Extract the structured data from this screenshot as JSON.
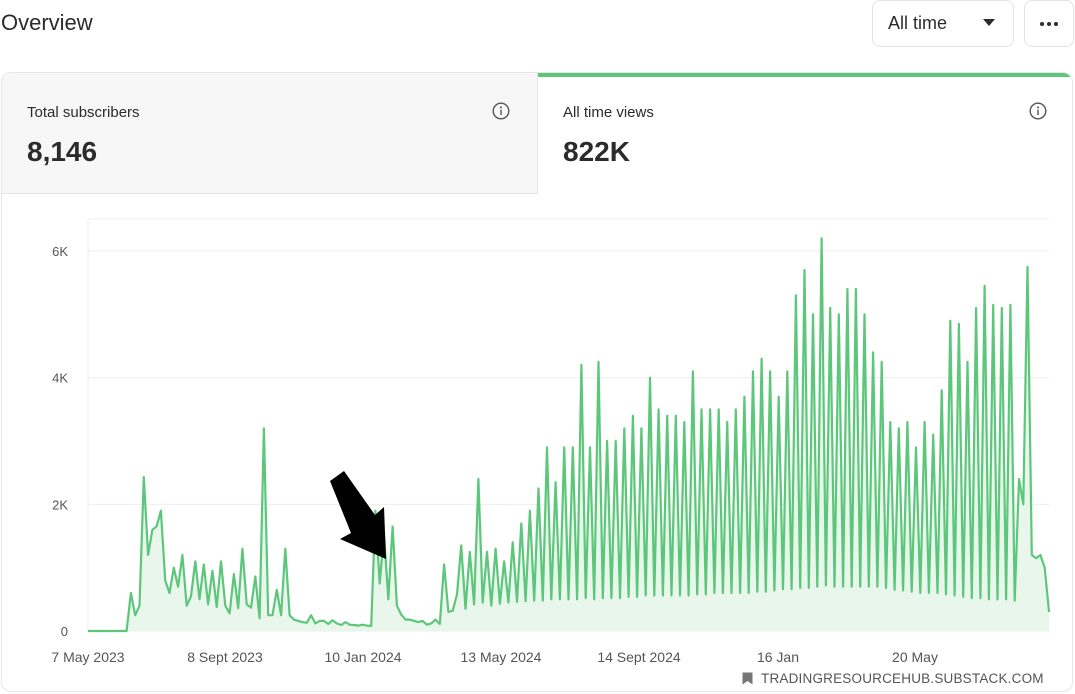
{
  "header": {
    "title": "Overview",
    "range_select": {
      "value": "All time"
    },
    "more_icon": "ellipsis-icon"
  },
  "stats": {
    "subscribers": {
      "label": "Total subscribers",
      "value": "8,146",
      "icon": "info-icon"
    },
    "views": {
      "label": "All time views",
      "value": "822K",
      "icon": "info-icon",
      "active": true
    }
  },
  "colors": {
    "accent": "#5cc77a",
    "area_fill": "#e9f6ec",
    "grid": "#eeeeee",
    "active_tab_bg": "#ffffff",
    "inactive_tab_bg": "#f7f7f7"
  },
  "watermark": {
    "text": "TRADINGRESOURCEHUB.SUBSTACK.COM",
    "icon": "bookmark-icon"
  },
  "chart_data": {
    "type": "area",
    "series": [
      {
        "values": [
          0,
          0,
          0,
          0,
          0,
          0,
          0,
          0,
          0,
          0,
          600,
          250,
          400,
          2430,
          1200,
          1600,
          1650,
          1900,
          800,
          600,
          1000,
          700,
          1200,
          400,
          550,
          1100,
          500,
          1050,
          420,
          950,
          380,
          1100,
          400,
          280,
          900,
          360,
          1300,
          420,
          370,
          860,
          200,
          3200,
          250,
          250,
          650,
          250,
          1300,
          250,
          180,
          160,
          140,
          130,
          250,
          120,
          160,
          160,
          110,
          170,
          120,
          95,
          140,
          100,
          95,
          85,
          100,
          85,
          80,
          1900,
          750,
          1550,
          500,
          1650,
          400,
          260,
          180,
          180,
          160,
          140,
          160,
          100,
          120,
          180,
          110,
          1050,
          300,
          320,
          580,
          1350,
          350,
          1250,
          420,
          2400,
          450,
          1250,
          400,
          1300,
          430,
          1100,
          450,
          1400,
          460,
          1700,
          470,
          1900,
          480,
          2250,
          480,
          2900,
          500,
          2350,
          500,
          2900,
          500,
          2900,
          500,
          4200,
          520,
          2900,
          500,
          4250,
          520,
          3000,
          520,
          3000,
          520,
          3200,
          540,
          3400,
          540,
          3200,
          560,
          4000,
          560,
          3500,
          560,
          3400,
          560,
          3400,
          560,
          3300,
          560,
          4100,
          580,
          3500,
          580,
          3500,
          600,
          3500,
          600,
          3300,
          600,
          3500,
          600,
          3700,
          600,
          4100,
          620,
          4300,
          620,
          4100,
          640,
          3700,
          660,
          4100,
          660,
          5300,
          680,
          5700,
          680,
          5000,
          700,
          6200,
          720,
          5100,
          700,
          5000,
          700,
          5400,
          700,
          5400,
          700,
          5000,
          700,
          4400,
          700,
          4250,
          680,
          3300,
          650,
          3200,
          640,
          3300,
          620,
          2900,
          600,
          3300,
          600,
          3100,
          600,
          3800,
          580,
          4900,
          560,
          4850,
          540,
          4250,
          520,
          5100,
          520,
          5450,
          500,
          5150,
          500,
          5100,
          500,
          5150,
          480,
          2400,
          2000,
          5750,
          1200,
          1150,
          1200,
          1000,
          300
        ]
      }
    ],
    "x_ticks": [
      "7 May 2023",
      "8 Sept 2023",
      "10 Jan 2024",
      "13 May 2024",
      "14 Sept 2024",
      "16 Jan",
      "20 May"
    ],
    "y_ticks": [
      "0",
      "2K",
      "4K",
      "6K"
    ],
    "ylim": [
      0,
      6500
    ],
    "grid": true,
    "annotation": "black-arrow"
  }
}
